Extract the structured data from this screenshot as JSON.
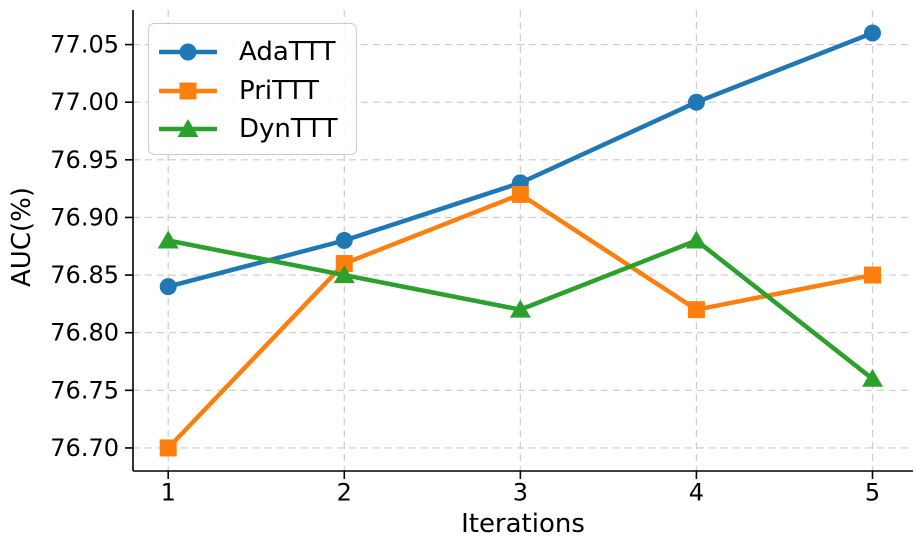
{
  "chart_data": {
    "type": "line",
    "title": "",
    "xlabel": "Iterations",
    "ylabel": "AUC(%)",
    "x": [
      1,
      2,
      3,
      4,
      5
    ],
    "series": [
      {
        "name": "AdaTTT",
        "color": "#1f77b4",
        "marker": "circle",
        "values": [
          76.84,
          76.88,
          76.93,
          77.0,
          77.06
        ]
      },
      {
        "name": "PriTTT",
        "color": "#ff7f0e",
        "marker": "square",
        "values": [
          76.7,
          76.86,
          76.92,
          76.82,
          76.85
        ]
      },
      {
        "name": "DynTTT",
        "color": "#2ca02c",
        "marker": "triangle",
        "values": [
          76.88,
          76.85,
          76.82,
          76.88,
          76.76
        ]
      }
    ],
    "xlim": [
      0.8,
      5.23
    ],
    "ylim": [
      76.68,
      77.08
    ],
    "xticks": [
      1,
      2,
      3,
      4,
      5
    ],
    "yticks": [
      76.7,
      76.75,
      76.8,
      76.85,
      76.9,
      76.95,
      77.0,
      77.05
    ],
    "ytick_decimals": 2,
    "grid": true,
    "grid_style": "dashed",
    "grid_color": "#cccccc",
    "axis_color": "#000000",
    "text_color": "#000000",
    "legend": {
      "position": "upper-left",
      "entries": [
        "AdaTTT",
        "PriTTT",
        "DynTTT"
      ]
    }
  }
}
